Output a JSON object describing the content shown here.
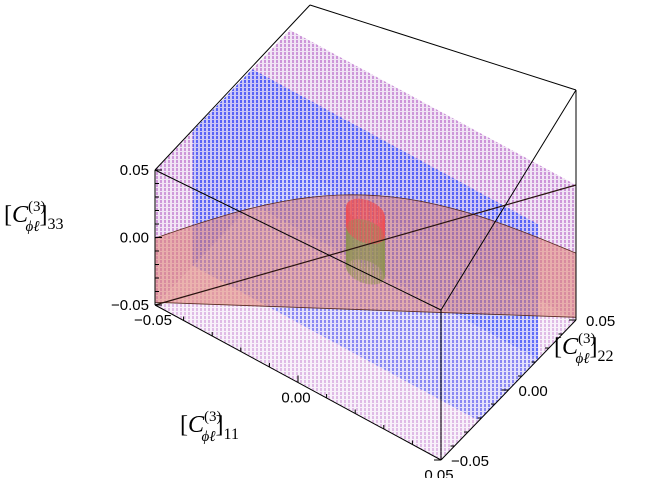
{
  "chart_data": {
    "type": "scatter",
    "subtype": "3d-region-plot",
    "title": "",
    "axes": {
      "x": {
        "label_base": "[C",
        "label_sub": "ϕℓ",
        "label_sup": "(3)",
        "label_index": "11",
        "range": [
          -0.05,
          0.05
        ],
        "ticks": [
          -0.05,
          0.0,
          0.05
        ],
        "tick_labels": [
          "−0.05",
          "0.00",
          "0.05"
        ]
      },
      "y": {
        "label_base": "[C",
        "label_sub": "ϕℓ",
        "label_sup": "(3)",
        "label_index": "22",
        "range": [
          -0.05,
          0.05
        ],
        "ticks": [
          -0.05,
          0.0,
          0.05
        ],
        "tick_labels": [
          "−0.05",
          "0.00",
          "0.05"
        ]
      },
      "z": {
        "label_base": "[C",
        "label_sub": "ϕℓ",
        "label_sup": "(3)",
        "label_index": "33",
        "range": [
          -0.05,
          0.05
        ],
        "ticks": [
          -0.05,
          0.0,
          0.05
        ],
        "tick_labels": [
          "−0.05",
          "0.00",
          "0.05"
        ]
      }
    },
    "regions": [
      {
        "name": "",
        "color": "#c07ad0",
        "shape": "full-box",
        "extent": {
          "x": [
            -0.05,
            0.05
          ],
          "y": [
            -0.05,
            0.05
          ],
          "z": [
            -0.05,
            0.05
          ]
        }
      },
      {
        "name": "",
        "color": "#3b55ff",
        "shape": "slab",
        "extent": {
          "x": [
            -0.05,
            0.05
          ],
          "y": [
            -0.022,
            0.022
          ],
          "z": [
            -0.05,
            0.05
          ]
        }
      },
      {
        "name": "",
        "color": "#2fa82f",
        "shape": "cylinder",
        "center": [
          0.0,
          0.0
        ],
        "radius": 0.006,
        "z": [
          -0.02,
          0.01
        ]
      },
      {
        "name": "",
        "color": "#ff1133",
        "shape": "cylinder",
        "center": [
          0.0,
          0.0
        ],
        "radius": 0.006,
        "z": [
          0.01,
          0.025
        ]
      }
    ],
    "surface": {
      "color": "#e08070",
      "shape": "diagonal-sheet",
      "description_points": [
        [
          -0.05,
          -0.05
        ],
        [
          0.05,
          0.05
        ]
      ]
    },
    "box": true,
    "grid": false
  }
}
